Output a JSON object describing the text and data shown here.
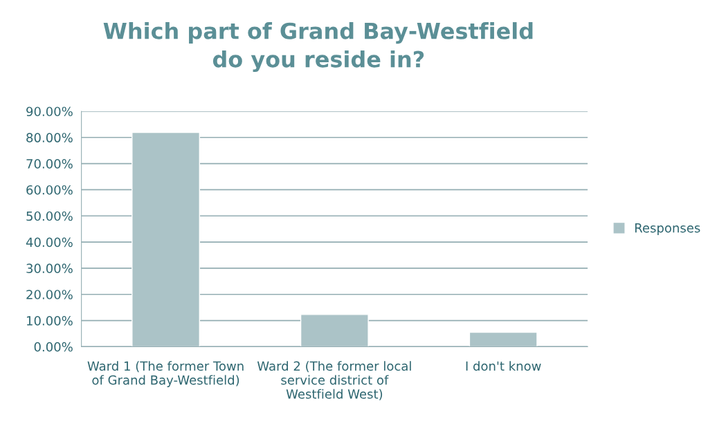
{
  "chart_data": {
    "type": "bar",
    "title": "Which part of Grand Bay-Westfield do you reside in?",
    "categories": [
      "Ward 1 (The former Town of Grand Bay-Westfield)",
      "Ward 2 (The former local service district of Westfield West)",
      "I don't know"
    ],
    "series": [
      {
        "name": "Responses",
        "color": "#abc3c7",
        "values": [
          81.9,
          12.3,
          5.5
        ]
      }
    ],
    "ylim": [
      0,
      90
    ],
    "yticks": [
      {
        "value": 0,
        "label": "0.00%"
      },
      {
        "value": 10,
        "label": "10.00%"
      },
      {
        "value": 20,
        "label": "20.00%"
      },
      {
        "value": 30,
        "label": "30.00%"
      },
      {
        "value": 40,
        "label": "40.00%"
      },
      {
        "value": 50,
        "label": "50.00%"
      },
      {
        "value": 60,
        "label": "60.00%"
      },
      {
        "value": 70,
        "label": "70.00%"
      },
      {
        "value": 80,
        "label": "80.00%"
      },
      {
        "value": 90,
        "label": "90.00%"
      }
    ],
    "grid": "y",
    "legend": "right"
  }
}
